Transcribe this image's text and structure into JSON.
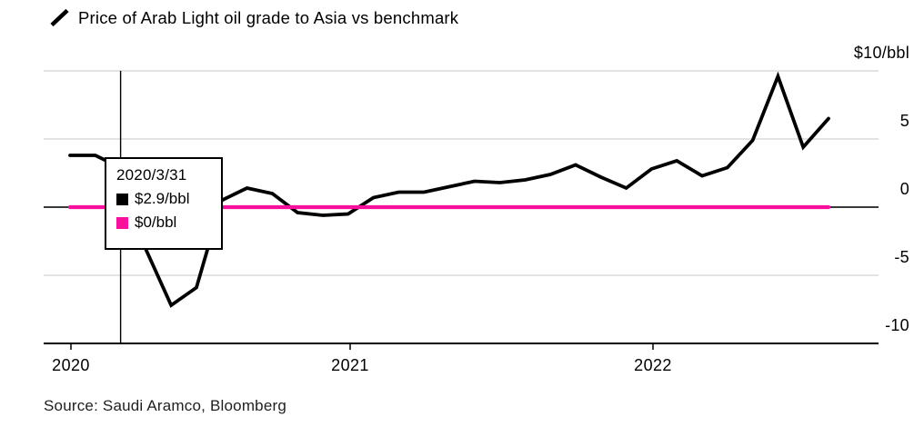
{
  "title": {
    "text": "Price of Arab Light oil grade to Asia vs benchmark"
  },
  "source": "Source: Saudi Aramco, Bloomberg",
  "colors": {
    "series_main": "#000000",
    "series_benchmark": "#f8109d",
    "grid": "#dadada",
    "zero_line": "#3a3a3a",
    "axis": "#000000",
    "background": "#ffffff"
  },
  "y_axis": {
    "ticks": [
      {
        "label": "$10/bbl",
        "value": 10
      },
      {
        "label": "5",
        "value": 5
      },
      {
        "label": "0",
        "value": 0
      },
      {
        "label": "-5",
        "value": -5
      },
      {
        "label": "-10",
        "value": -10
      }
    ]
  },
  "x_axis": {
    "ticks": [
      {
        "label": "2020"
      },
      {
        "label": "2021"
      },
      {
        "label": "2022"
      }
    ]
  },
  "tooltip": {
    "date": "2020/3/31",
    "items": [
      {
        "label": "$2.9/bbl",
        "color": "#000000"
      },
      {
        "label": "$0/bbl",
        "color": "#f8109d"
      }
    ]
  },
  "chart_data": {
    "type": "line",
    "title": "Price of Arab Light oil grade to Asia vs benchmark",
    "xlabel": "",
    "ylabel": "$/bbl",
    "ylim": [
      -10,
      10
    ],
    "y_ticks": [
      10,
      5,
      0,
      -5,
      -10
    ],
    "x_tick_labels": [
      "2020",
      "2021",
      "2022"
    ],
    "grid": "horizontal",
    "legend_position": "none",
    "x": [
      "2020-01-31",
      "2020-02-29",
      "2020-03-31",
      "2020-04-30",
      "2020-05-31",
      "2020-06-30",
      "2020-07-31",
      "2020-08-31",
      "2020-09-30",
      "2020-10-31",
      "2020-11-30",
      "2020-12-31",
      "2021-01-31",
      "2021-02-28",
      "2021-03-31",
      "2021-04-30",
      "2021-05-31",
      "2021-06-30",
      "2021-07-31",
      "2021-08-31",
      "2021-09-30",
      "2021-10-31",
      "2021-11-30",
      "2021-12-31",
      "2022-01-31",
      "2022-02-28",
      "2022-03-31",
      "2022-04-30",
      "2022-05-31",
      "2022-06-30",
      "2022-07-31"
    ],
    "series": [
      {
        "name": "Arab Light oil grade price to Asia vs benchmark",
        "color": "#000000",
        "values": [
          3.8,
          3.8,
          2.9,
          -3.1,
          -7.2,
          -5.9,
          0.5,
          1.4,
          1.0,
          -0.4,
          -0.6,
          -0.5,
          0.7,
          1.1,
          1.1,
          1.5,
          1.9,
          1.8,
          2.0,
          2.4,
          3.1,
          2.2,
          1.4,
          2.8,
          3.4,
          2.3,
          2.9,
          4.9,
          9.6,
          4.4,
          6.5
        ]
      },
      {
        "name": "Benchmark",
        "color": "#f8109d",
        "values": [
          0,
          0,
          0,
          0,
          0,
          0,
          0,
          0,
          0,
          0,
          0,
          0,
          0,
          0,
          0,
          0,
          0,
          0,
          0,
          0,
          0,
          0,
          0,
          0,
          0,
          0,
          0,
          0,
          0,
          0,
          0
        ]
      }
    ],
    "annotations": {
      "crosshair_date": "2020-03-31",
      "tooltip_values": [
        "$2.9/bbl",
        "$0/bbl"
      ]
    }
  }
}
